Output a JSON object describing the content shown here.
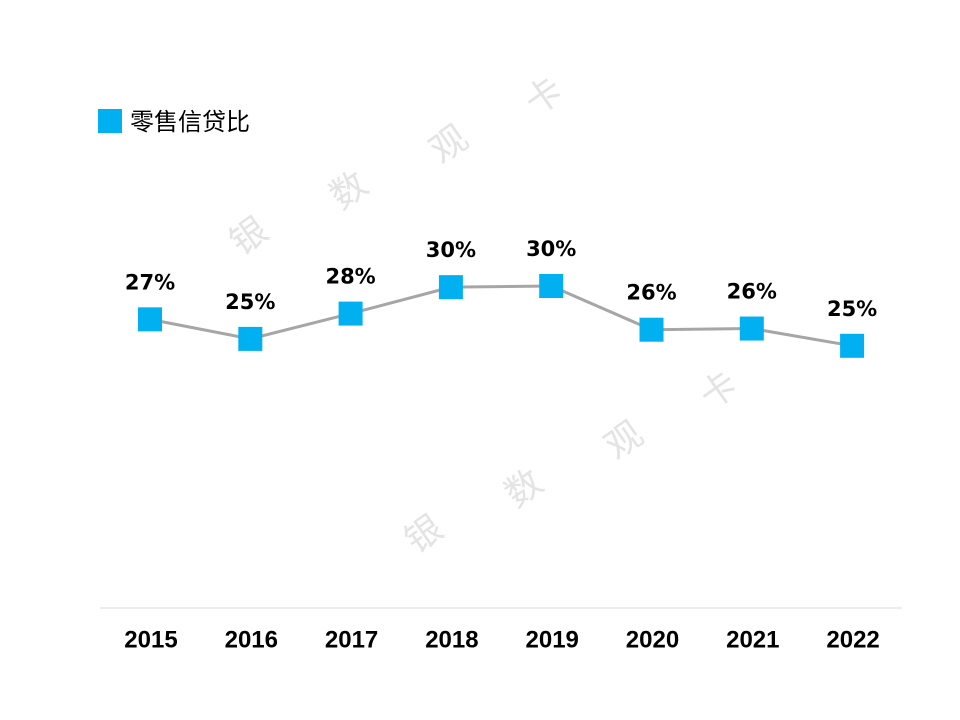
{
  "chart_data": {
    "type": "line",
    "categories": [
      "2015",
      "2016",
      "2017",
      "2018",
      "2019",
      "2020",
      "2021",
      "2022"
    ],
    "series": [
      {
        "name": "零售信贷比",
        "color": "#00b0f0",
        "line_color": "#a6a6a6",
        "values": [
          27.1,
          25.4,
          27.6,
          29.9,
          30.0,
          26.2,
          26.3,
          24.8
        ],
        "value_labels": [
          "27%",
          "25%",
          "28%",
          "30%",
          "30%",
          "26%",
          "26%",
          "25%"
        ]
      }
    ],
    "ylim": [
      0,
      45
    ],
    "legend": "top-left",
    "watermark": [
      "银",
      "数",
      "观",
      "卡"
    ]
  }
}
